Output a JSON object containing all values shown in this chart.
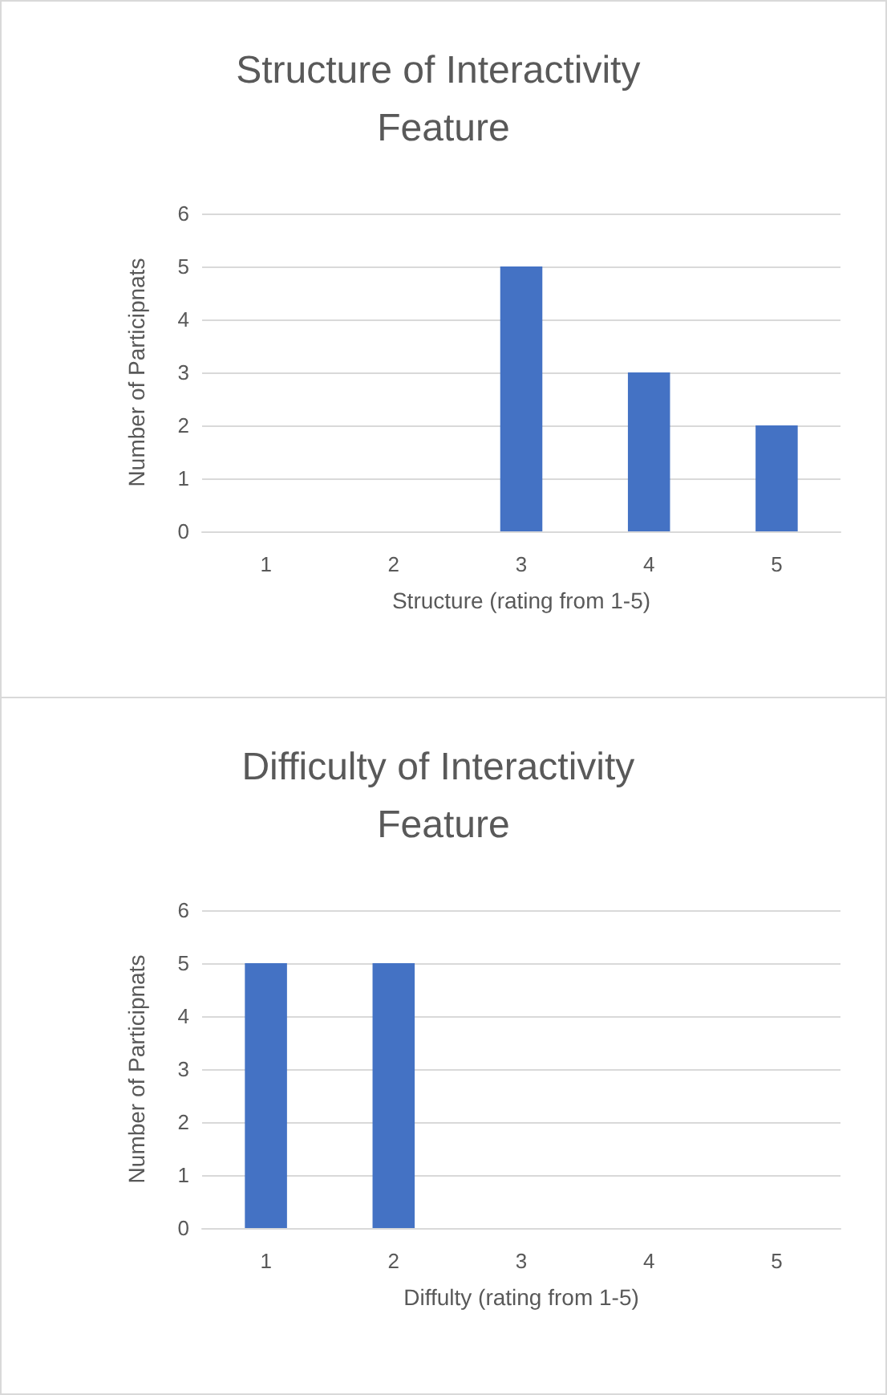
{
  "chart_data": [
    {
      "type": "bar",
      "title": "Structure of Interactivity Feature",
      "xlabel": "Structure (rating from 1-5)",
      "ylabel": "Number of Participnats",
      "categories": [
        "1",
        "2",
        "3",
        "4",
        "5"
      ],
      "values": [
        0,
        0,
        5,
        3,
        2
      ],
      "color": "#4472c4",
      "ylim": [
        0,
        6
      ],
      "yticks": [
        0,
        1,
        2,
        3,
        4,
        5,
        6
      ],
      "grid": "y"
    },
    {
      "type": "bar",
      "title": "Difficulty of Interactivity Feature",
      "xlabel": "Diffulty (rating from 1-5)",
      "ylabel": "Number of Participnats",
      "categories": [
        "1",
        "2",
        "3",
        "4",
        "5"
      ],
      "values": [
        5,
        5,
        0,
        0,
        0
      ],
      "color": "#4472c4",
      "ylim": [
        0,
        6
      ],
      "yticks": [
        0,
        1,
        2,
        3,
        4,
        5,
        6
      ],
      "grid": "y"
    }
  ]
}
